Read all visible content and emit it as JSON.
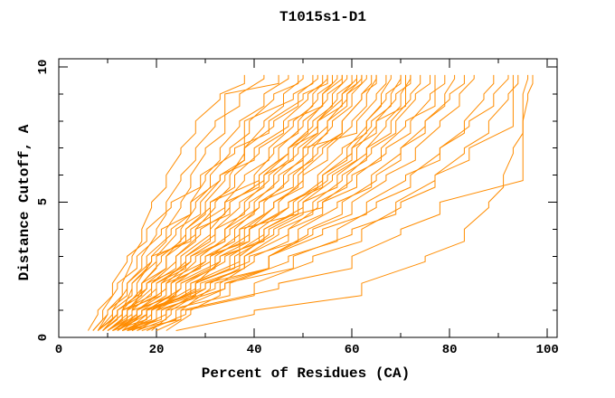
{
  "title": "T1015s1-D1",
  "axes": {
    "x": {
      "label": "Percent of Residues (CA)",
      "min": 0,
      "max": 102,
      "major_ticks": [
        0,
        20,
        40,
        60,
        80,
        100
      ],
      "major_tick_labels": [
        "0",
        "20",
        "40",
        "60",
        "80",
        "100"
      ],
      "minor_ticks": [
        10,
        30,
        50,
        70,
        90
      ]
    },
    "y": {
      "label": "Distance Cutoff, A",
      "min": 0,
      "max": 10.3,
      "major_ticks": [
        0,
        5,
        10
      ],
      "major_tick_labels": [
        "0",
        "5",
        "10"
      ],
      "minor_ticks": [
        1,
        2,
        3,
        4,
        6,
        7,
        8,
        9
      ]
    }
  },
  "style": {
    "curve_color": "#ff8c00",
    "axis_color": "#000000",
    "background": "#ffffff"
  },
  "chart_data": {
    "type": "line",
    "title": "T1015s1-D1",
    "xlabel": "Percent of Residues (CA)",
    "ylabel": "Distance Cutoff, A",
    "xlim": [
      0,
      102
    ],
    "ylim": [
      0,
      10.3
    ],
    "grid": false,
    "legend": "none",
    "description": "GDT-style plot: each curve is one model prediction; x = percent of CA residues under distance cutoff y (Angstrom).",
    "cutoffs": [
      0.25,
      1,
      2,
      3,
      4,
      5,
      6,
      7,
      8,
      9,
      9.7
    ],
    "series": [
      {
        "percent": [
          7,
          10,
          13,
          15,
          17,
          19,
          22,
          25,
          28,
          33,
          38
        ]
      },
      {
        "percent": [
          8,
          11,
          14,
          17,
          20,
          22,
          25,
          28,
          32,
          37,
          42
        ]
      },
      {
        "percent": [
          9,
          12,
          16,
          19,
          22,
          25,
          27,
          30,
          34,
          34,
          45
        ]
      },
      {
        "percent": [
          10,
          13,
          15,
          18,
          23,
          27,
          30,
          33,
          37,
          42,
          47
        ]
      },
      {
        "percent": [
          8,
          12,
          17,
          21,
          25,
          28,
          31,
          35,
          39,
          44,
          49
        ]
      },
      {
        "percent": [
          11,
          14,
          18,
          22,
          26,
          30,
          34,
          38,
          42,
          46,
          50
        ]
      },
      {
        "percent": [
          9,
          13,
          19,
          24,
          28,
          32,
          35,
          38,
          38,
          48,
          52
        ]
      },
      {
        "percent": [
          12,
          15,
          17,
          20,
          24,
          29,
          33,
          38,
          44,
          49,
          53
        ]
      },
      {
        "percent": [
          8,
          11,
          15,
          20,
          26,
          31,
          36,
          41,
          46,
          51,
          54
        ]
      },
      {
        "percent": [
          10,
          14,
          19,
          24,
          29,
          34,
          38,
          43,
          48,
          52,
          55
        ]
      },
      {
        "percent": [
          12,
          16,
          21,
          26,
          31,
          35,
          40,
          44,
          49,
          53,
          56
        ]
      },
      {
        "percent": [
          9,
          12,
          18,
          25,
          31,
          31,
          41,
          45,
          50,
          54,
          57
        ]
      },
      {
        "percent": [
          13,
          17,
          22,
          27,
          32,
          37,
          42,
          47,
          51,
          55,
          58
        ]
      },
      {
        "percent": [
          11,
          15,
          20,
          26,
          32,
          38,
          43,
          47,
          52,
          56,
          59
        ]
      },
      {
        "percent": [
          14,
          18,
          23,
          28,
          34,
          39,
          44,
          49,
          53,
          57,
          60
        ]
      },
      {
        "percent": [
          10,
          13,
          17,
          22,
          28,
          35,
          42,
          48,
          53,
          58,
          61
        ]
      },
      {
        "percent": [
          15,
          19,
          24,
          30,
          36,
          41,
          46,
          51,
          55,
          59,
          62
        ]
      },
      {
        "percent": [
          12,
          16,
          22,
          29,
          35,
          40,
          45,
          50,
          55,
          59,
          62
        ]
      },
      {
        "percent": [
          8,
          10,
          14,
          19,
          27,
          34,
          41,
          47,
          53,
          58,
          61
        ]
      },
      {
        "percent": [
          16,
          20,
          25,
          31,
          37,
          42,
          47,
          52,
          56,
          60,
          63
        ]
      },
      {
        "percent": [
          10,
          14,
          20,
          27,
          34,
          41,
          48,
          53,
          58,
          62,
          64
        ]
      },
      {
        "percent": [
          13,
          18,
          25,
          32,
          39,
          45,
          50,
          55,
          60,
          63,
          65
        ]
      },
      {
        "percent": [
          11,
          16,
          23,
          31,
          38,
          44,
          50,
          50,
          61,
          65,
          67
        ]
      },
      {
        "percent": [
          15,
          20,
          28,
          35,
          42,
          48,
          54,
          59,
          63,
          66,
          68
        ]
      },
      {
        "percent": [
          12,
          17,
          26,
          34,
          41,
          47,
          53,
          58,
          63,
          67,
          70
        ]
      },
      {
        "percent": [
          14,
          19,
          27,
          36,
          44,
          50,
          56,
          61,
          65,
          71,
          71
        ]
      },
      {
        "percent": [
          9,
          13,
          21,
          30,
          39,
          47,
          54,
          60,
          65,
          69,
          72
        ]
      },
      {
        "percent": [
          16,
          22,
          30,
          38,
          45,
          52,
          58,
          63,
          67,
          70,
          72
        ]
      },
      {
        "percent": [
          10,
          15,
          24,
          33,
          42,
          50,
          57,
          63,
          68,
          72,
          74
        ]
      },
      {
        "percent": [
          13,
          19,
          29,
          38,
          47,
          54,
          60,
          66,
          71,
          77,
          77
        ]
      },
      {
        "percent": [
          11,
          17,
          27,
          37,
          37,
          54,
          61,
          67,
          72,
          76,
          79
        ]
      },
      {
        "percent": [
          17,
          24,
          34,
          43,
          51,
          58,
          65,
          70,
          75,
          79,
          81
        ]
      },
      {
        "percent": [
          12,
          18,
          28,
          39,
          49,
          57,
          64,
          70,
          75,
          80,
          83
        ]
      },
      {
        "percent": [
          14,
          21,
          32,
          43,
          52,
          60,
          67,
          73,
          78,
          82,
          85
        ]
      },
      {
        "percent": [
          15,
          22,
          35,
          47,
          57,
          65,
          72,
          78,
          83,
          87,
          89
        ]
      },
      {
        "percent": [
          11,
          18,
          30,
          43,
          54,
          63,
          71,
          78,
          84,
          89,
          92
        ]
      },
      {
        "percent": [
          18,
          26,
          40,
          52,
          62,
          70,
          77,
          83,
          88,
          92,
          94
        ]
      },
      {
        "percent": [
          13,
          20,
          34,
          48,
          60,
          69,
          77,
          84,
          93,
          93,
          93
        ]
      },
      {
        "percent": [
          24,
          40,
          62,
          75,
          83,
          88,
          91,
          93,
          95,
          96,
          97
        ]
      },
      {
        "percent": [
          14,
          25,
          45,
          60,
          70,
          78,
          95,
          95,
          95,
          95,
          96
        ]
      },
      {
        "percent": [
          19,
          23,
          28,
          33,
          39,
          44,
          49,
          54,
          58,
          62,
          65
        ]
      },
      {
        "percent": [
          20,
          25,
          31,
          37,
          43,
          49,
          55,
          60,
          64,
          68,
          70
        ]
      },
      {
        "percent": [
          22,
          27,
          33,
          40,
          47,
          53,
          59,
          64,
          69,
          73,
          76
        ]
      },
      {
        "percent": [
          7,
          9,
          12,
          16,
          21,
          27,
          33,
          40,
          47,
          54,
          58
        ]
      },
      {
        "percent": [
          6,
          8,
          11,
          14,
          18,
          23,
          29,
          36,
          43,
          50,
          55
        ]
      }
    ]
  }
}
